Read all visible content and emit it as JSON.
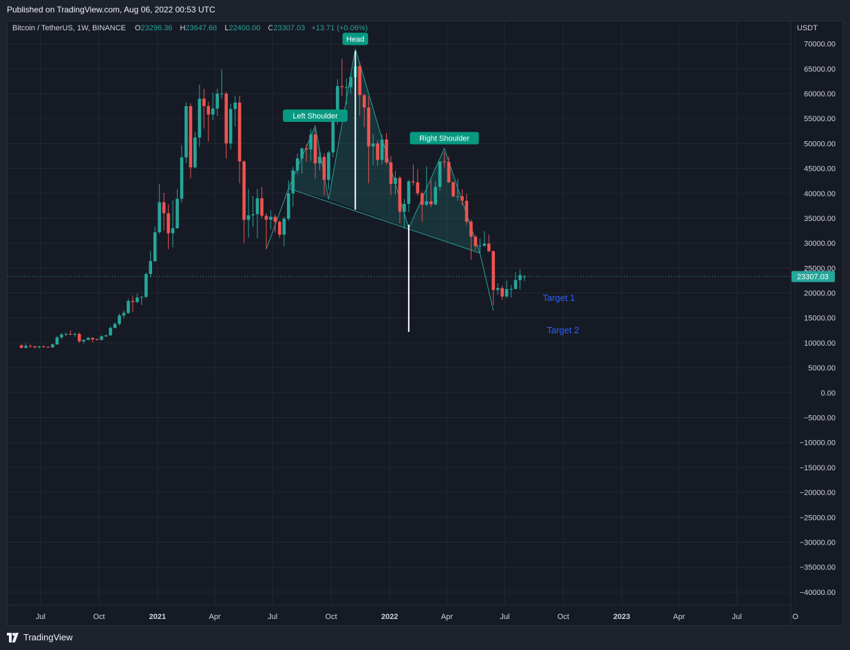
{
  "published": "Published on TradingView.com, Aug 06, 2022 00:53 UTC",
  "brand": "TradingView",
  "legend": {
    "symbol": "Bitcoin / TetherUS, 1W, BINANCE",
    "o_label": "O",
    "o_value": "23296.36",
    "h_label": "H",
    "h_value": "23647.68",
    "l_label": "L",
    "l_value": "22400.00",
    "c_label": "C",
    "c_value": "23307.03",
    "change": "+13.71 (+0.06%)"
  },
  "chart_data": {
    "type": "candlestick",
    "y_unit": "USDT",
    "ylim": [
      -42500,
      74500
    ],
    "y_ticks": [
      "70000.00",
      "65000.00",
      "60000.00",
      "55000.00",
      "50000.00",
      "45000.00",
      "40000.00",
      "35000.00",
      "30000.00",
      "25000.00",
      "20000.00",
      "15000.00",
      "10000.00",
      "5000.00",
      "0.00",
      "−5000.00",
      "−10000.00",
      "−15000.00",
      "−20000.00",
      "−25000.00",
      "−30000.00",
      "−35000.00",
      "−40000.00"
    ],
    "x_labels": [
      "Jul",
      "Oct",
      "2021",
      "Apr",
      "Jul",
      "Oct",
      "2022",
      "Apr",
      "Jul",
      "Oct",
      "2023",
      "Apr",
      "Jul",
      "O"
    ],
    "last_price": "23307.03",
    "colors": {
      "up": "#26a69a",
      "down": "#ef5350",
      "background": "#161a25",
      "grid": "#242833",
      "pattern_fill": "#26a69a",
      "pattern_line": "#26a69a",
      "measure_line": "#ffffff",
      "target_text": "#2962ff"
    },
    "annotations": [
      {
        "text": "Head",
        "price": 68900,
        "date": "2021-11-08"
      },
      {
        "text": "Left Shoulder",
        "price": 53500,
        "date": "2021-09-06"
      },
      {
        "text": "Right Shoulder",
        "price": 49000,
        "date": "2022-03-28"
      },
      {
        "text": "Target 1",
        "price": 19000
      },
      {
        "text": "Target 2",
        "price": 12500
      }
    ],
    "candles": [
      [
        "2020-06-01",
        9500,
        9700,
        8900,
        9000
      ],
      [
        "2020-06-08",
        9000,
        9900,
        8900,
        9400
      ],
      [
        "2020-06-15",
        9400,
        9700,
        9000,
        9300
      ],
      [
        "2020-06-22",
        9300,
        9400,
        8900,
        9100
      ],
      [
        "2020-06-29",
        9100,
        9400,
        8900,
        9300
      ],
      [
        "2020-07-06",
        9300,
        9500,
        9000,
        9200
      ],
      [
        "2020-07-13",
        9200,
        9300,
        9000,
        9100
      ],
      [
        "2020-07-20",
        9100,
        9800,
        9000,
        9700
      ],
      [
        "2020-07-27",
        9700,
        11400,
        9600,
        11100
      ],
      [
        "2020-08-03",
        11100,
        12000,
        10800,
        11700
      ],
      [
        "2020-08-10",
        11700,
        12100,
        11300,
        11800
      ],
      [
        "2020-08-17",
        11800,
        12500,
        11500,
        11700
      ],
      [
        "2020-08-24",
        11700,
        12000,
        11200,
        11800
      ],
      [
        "2020-08-31",
        11800,
        12100,
        10000,
        10300
      ],
      [
        "2020-09-07",
        10300,
        10700,
        9900,
        10600
      ],
      [
        "2020-09-14",
        10600,
        11200,
        10500,
        11000
      ],
      [
        "2020-09-21",
        11000,
        11100,
        10100,
        10700
      ],
      [
        "2020-09-28",
        10700,
        10900,
        10500,
        10600
      ],
      [
        "2020-10-05",
        10600,
        11500,
        10500,
        11300
      ],
      [
        "2020-10-12",
        11300,
        11700,
        11200,
        11500
      ],
      [
        "2020-10-19",
        11500,
        13300,
        11400,
        13000
      ],
      [
        "2020-10-26",
        13000,
        14100,
        12900,
        13800
      ],
      [
        "2020-11-02",
        13800,
        15900,
        13500,
        15500
      ],
      [
        "2020-11-09",
        15500,
        16500,
        14900,
        16000
      ],
      [
        "2020-11-16",
        16000,
        18800,
        15800,
        18400
      ],
      [
        "2020-11-23",
        18400,
        19500,
        16200,
        18200
      ],
      [
        "2020-11-30",
        18200,
        19900,
        18000,
        19100
      ],
      [
        "2020-12-07",
        19100,
        19400,
        17600,
        19200
      ],
      [
        "2020-12-14",
        19200,
        24100,
        19000,
        23800
      ],
      [
        "2020-12-21",
        23800,
        28400,
        23100,
        26400
      ],
      [
        "2020-12-28",
        26400,
        33300,
        26200,
        32200
      ],
      [
        "2021-01-04",
        32200,
        41900,
        31900,
        38200
      ],
      [
        "2021-01-11",
        38200,
        40100,
        32500,
        36000
      ],
      [
        "2021-01-18",
        36000,
        37800,
        28800,
        32000
      ],
      [
        "2021-01-25",
        32000,
        38600,
        29200,
        33000
      ],
      [
        "2021-02-01",
        33000,
        40900,
        32900,
        38900
      ],
      [
        "2021-02-08",
        38900,
        49700,
        38100,
        47200
      ],
      [
        "2021-02-15",
        47200,
        58300,
        46000,
        57500
      ],
      [
        "2021-02-22",
        57500,
        58100,
        43000,
        45200
      ],
      [
        "2021-03-01",
        45200,
        52300,
        45000,
        51200
      ],
      [
        "2021-03-08",
        51200,
        61800,
        49300,
        59000
      ],
      [
        "2021-03-15",
        59000,
        61000,
        53000,
        57500
      ],
      [
        "2021-03-22",
        57500,
        58400,
        50400,
        55800
      ],
      [
        "2021-03-29",
        55800,
        60200,
        54700,
        57000
      ],
      [
        "2021-04-05",
        57000,
        61000,
        55500,
        60000
      ],
      [
        "2021-04-12",
        60000,
        64900,
        59000,
        60000
      ],
      [
        "2021-04-19",
        60000,
        60400,
        47000,
        50000
      ],
      [
        "2021-04-26",
        50000,
        58000,
        48800,
        56900
      ],
      [
        "2021-05-03",
        56900,
        59500,
        53400,
        58200
      ],
      [
        "2021-05-10",
        58200,
        59600,
        42000,
        46400
      ],
      [
        "2021-05-17",
        46400,
        46600,
        30000,
        34700
      ],
      [
        "2021-05-24",
        34700,
        40900,
        31100,
        35600
      ],
      [
        "2021-05-31",
        35600,
        39500,
        33300,
        35800
      ],
      [
        "2021-06-07",
        35800,
        40900,
        31000,
        39000
      ],
      [
        "2021-06-14",
        39000,
        41300,
        35000,
        35500
      ],
      [
        "2021-06-21",
        35500,
        36000,
        28800,
        34700
      ],
      [
        "2021-06-28",
        34700,
        36600,
        32700,
        35300
      ],
      [
        "2021-07-05",
        35300,
        35800,
        32100,
        34300
      ],
      [
        "2021-07-12",
        34300,
        34600,
        31100,
        31700
      ],
      [
        "2021-07-19",
        31700,
        35300,
        29300,
        34900
      ],
      [
        "2021-07-26",
        34900,
        42600,
        34500,
        40000
      ],
      [
        "2021-08-02",
        40000,
        45300,
        37300,
        44600
      ],
      [
        "2021-08-09",
        44600,
        48000,
        43800,
        47000
      ],
      [
        "2021-08-16",
        47000,
        49200,
        44000,
        49000
      ],
      [
        "2021-08-23",
        49000,
        49800,
        46300,
        48800
      ],
      [
        "2021-08-30",
        48800,
        52900,
        46500,
        51800
      ],
      [
        "2021-09-06",
        51800,
        52900,
        42900,
        46000
      ],
      [
        "2021-09-13",
        46000,
        48800,
        44700,
        47300
      ],
      [
        "2021-09-20",
        47300,
        48000,
        39600,
        42700
      ],
      [
        "2021-09-27",
        42700,
        48500,
        40800,
        48200
      ],
      [
        "2021-10-04",
        48200,
        56500,
        47200,
        54900
      ],
      [
        "2021-10-11",
        54900,
        62900,
        53800,
        61500
      ],
      [
        "2021-10-18",
        61500,
        67000,
        59500,
        61300
      ],
      [
        "2021-10-25",
        61300,
        63000,
        57800,
        61300
      ],
      [
        "2021-11-01",
        61300,
        64300,
        59900,
        63300
      ],
      [
        "2021-11-08",
        63300,
        69000,
        62800,
        65500
      ],
      [
        "2021-11-15",
        65500,
        66300,
        55600,
        59700
      ],
      [
        "2021-11-22",
        59700,
        59900,
        53300,
        57200
      ],
      [
        "2021-11-29",
        57200,
        59400,
        42000,
        49400
      ],
      [
        "2021-12-06",
        49400,
        51900,
        45700,
        50000
      ],
      [
        "2021-12-13",
        50000,
        50600,
        45500,
        46700
      ],
      [
        "2021-12-20",
        46700,
        51800,
        45800,
        50800
      ],
      [
        "2021-12-27",
        50800,
        52100,
        45700,
        46200
      ],
      [
        "2022-01-03",
        46200,
        47500,
        39600,
        41900
      ],
      [
        "2022-01-10",
        41900,
        44500,
        39800,
        43100
      ],
      [
        "2022-01-17",
        43100,
        43500,
        34000,
        36300
      ],
      [
        "2022-01-24",
        36300,
        38900,
        32900,
        37900
      ],
      [
        "2022-01-31",
        37900,
        42700,
        36200,
        42400
      ],
      [
        "2022-02-07",
        42400,
        45800,
        41600,
        42200
      ],
      [
        "2022-02-14",
        42200,
        44800,
        39500,
        40000
      ],
      [
        "2022-02-21",
        40000,
        40400,
        34300,
        37700
      ],
      [
        "2022-02-28",
        37700,
        45400,
        37500,
        38400
      ],
      [
        "2022-03-07",
        38400,
        42600,
        37200,
        37800
      ],
      [
        "2022-03-14",
        37800,
        42400,
        37600,
        41300
      ],
      [
        "2022-03-21",
        41300,
        46000,
        40500,
        46400
      ],
      [
        "2022-03-28",
        46400,
        48200,
        45200,
        46300
      ],
      [
        "2022-04-04",
        46300,
        47400,
        42100,
        42200
      ],
      [
        "2022-04-11",
        42200,
        42400,
        39200,
        39400
      ],
      [
        "2022-04-18",
        39400,
        42900,
        38500,
        39400
      ],
      [
        "2022-04-25",
        39400,
        40800,
        37600,
        38500
      ],
      [
        "2022-05-02",
        38500,
        39900,
        33700,
        34300
      ],
      [
        "2022-05-09",
        34300,
        34700,
        26700,
        31300
      ],
      [
        "2022-05-16",
        31300,
        31600,
        28600,
        29400
      ],
      [
        "2022-05-23",
        29400,
        30900,
        28000,
        29500
      ],
      [
        "2022-05-30",
        29500,
        32400,
        29300,
        29900
      ],
      [
        "2022-06-06",
        29900,
        31700,
        28200,
        28400
      ],
      [
        "2022-06-13",
        28400,
        28500,
        17600,
        20600
      ],
      [
        "2022-06-20",
        20600,
        21900,
        19600,
        21000
      ],
      [
        "2022-06-27",
        21000,
        21500,
        18600,
        19300
      ],
      [
        "2022-07-04",
        19300,
        22500,
        19000,
        20800
      ],
      [
        "2022-07-11",
        20800,
        21600,
        19100,
        20800
      ],
      [
        "2022-07-18",
        20800,
        24200,
        20800,
        22600
      ],
      [
        "2022-07-25",
        22600,
        24700,
        20700,
        23600
      ],
      [
        "2022-08-01",
        23296.36,
        23647.68,
        22400,
        23307.03
      ]
    ]
  }
}
